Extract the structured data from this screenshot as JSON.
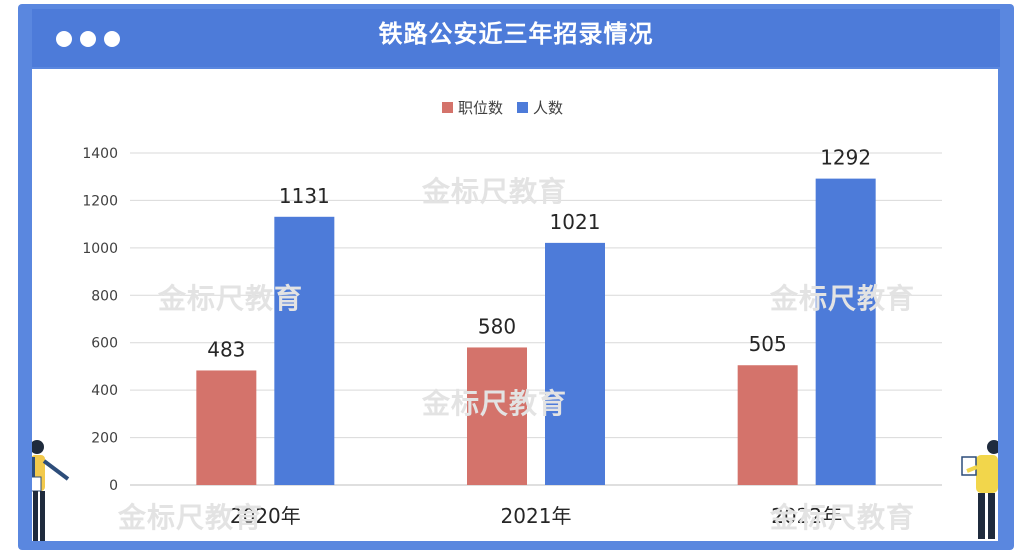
{
  "header": {
    "title": "铁路公安近三年招录情况"
  },
  "watermark": "金标尺教育",
  "colors": {
    "header": "#4d7bd9",
    "frame": "#5a87df",
    "positions": "#d4736b",
    "people": "#4d7bd9"
  },
  "chart_data": {
    "type": "bar",
    "title": "铁路公安近三年招录情况",
    "categories": [
      "2020年",
      "2021年",
      "2022年"
    ],
    "series": [
      {
        "name": "职位数",
        "values": [
          483,
          580,
          505
        ],
        "color": "#d4736b"
      },
      {
        "name": "人数",
        "values": [
          1131,
          1021,
          1292
        ],
        "color": "#4d7bd9"
      }
    ],
    "yticks": [
      0,
      200,
      400,
      600,
      800,
      1000,
      1200,
      1400
    ],
    "ylim": [
      0,
      1400
    ],
    "grid": true,
    "legend": "top-center"
  }
}
